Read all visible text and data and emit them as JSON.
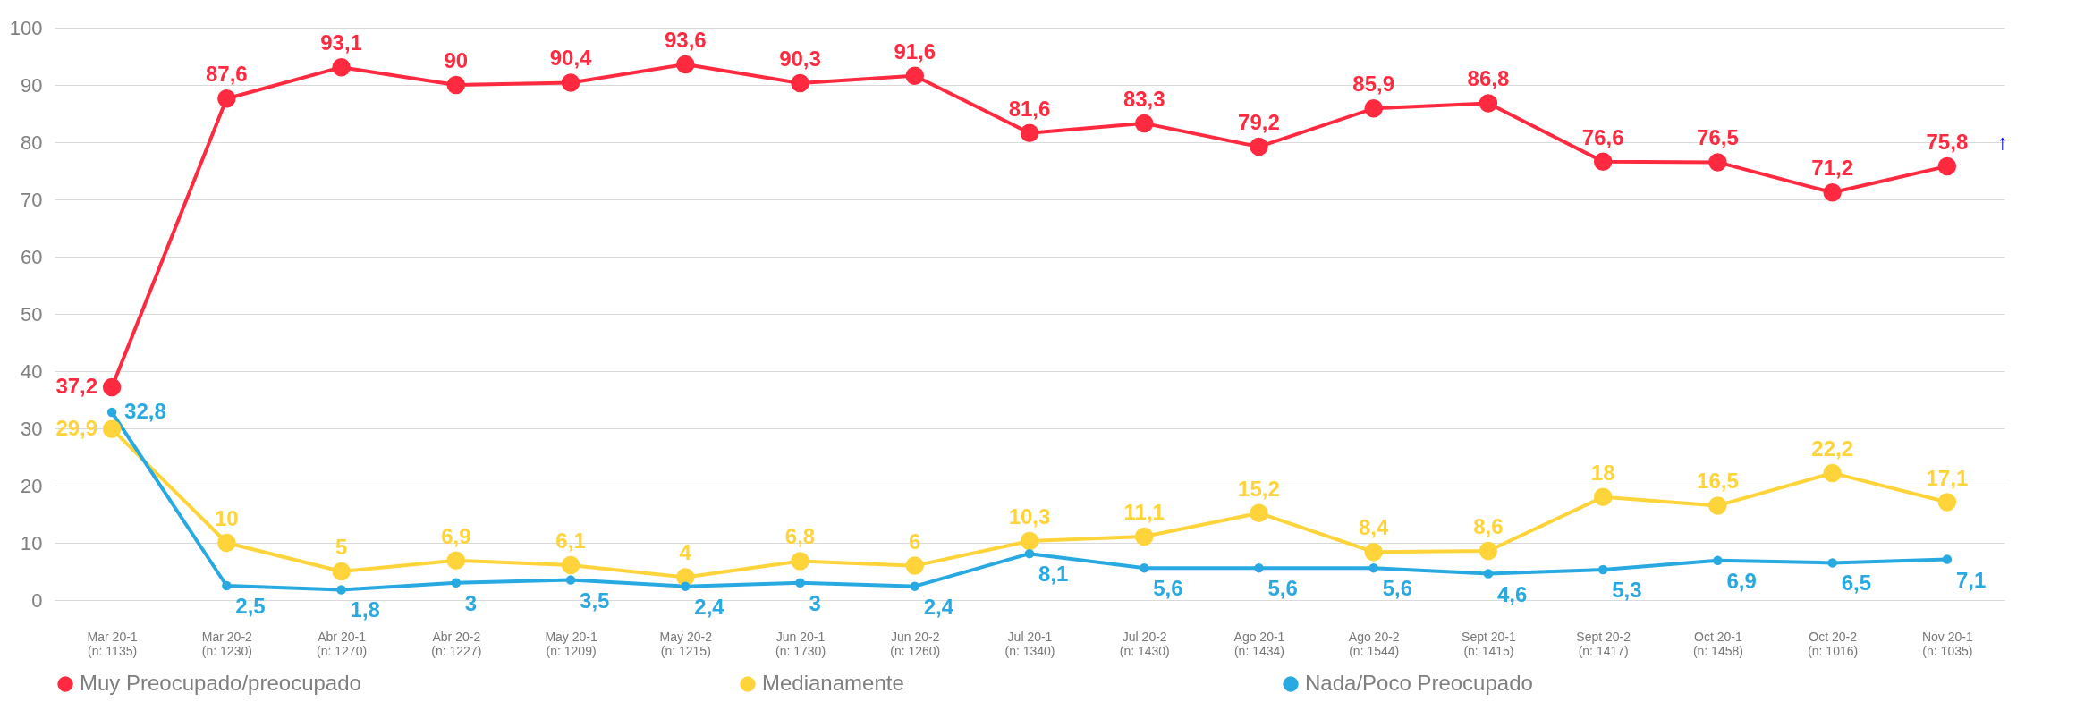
{
  "chart_data": {
    "type": "line",
    "categories": [
      "Mar 20-1\n(n: 1135)",
      "Mar 20-2\n(n: 1230)",
      "Abr 20-1\n(n: 1270)",
      "Abr 20-2\n(n: 1227)",
      "May 20-1\n(n: 1209)",
      "May 20-2\n(n: 1215)",
      "Jun 20-1\n(n: 1730)",
      "Jun 20-2\n(n: 1260)",
      "Jul 20-1\n(n: 1340)",
      "Jul 20-2\n(n: 1430)",
      "Ago 20-1\n(n: 1434)",
      "Ago 20-2\n(n: 1544)",
      "Sept 20-1\n(n: 1415)",
      "Sept 20-2\n(n: 1417)",
      "Oct 20-1\n(n: 1458)",
      "Oct 20-2\n(n: 1016)",
      "Nov 20-1\n(n: 1035)"
    ],
    "series": [
      {
        "name": "Muy Preocupado/preocupado",
        "color": "#ff2a3f",
        "values": [
          37.2,
          87.6,
          93.1,
          90,
          90.4,
          93.6,
          90.3,
          91.6,
          81.6,
          83.3,
          79.2,
          85.9,
          86.8,
          76.6,
          76.5,
          71.2,
          75.8
        ],
        "value_labels": [
          "37,2",
          "87,6",
          "93,1",
          "90",
          "90,4",
          "93,6",
          "90,3",
          "91,6",
          "81,6",
          "83,3",
          "79,2",
          "85,9",
          "86,8",
          "76,6",
          "76,5",
          "71,2",
          "75,8"
        ]
      },
      {
        "name": "Medianamente",
        "color": "#ffd43b",
        "values": [
          29.9,
          10,
          5,
          6.9,
          6.1,
          4,
          6.8,
          6,
          10.3,
          11.1,
          15.2,
          8.4,
          8.6,
          18,
          16.5,
          22.2,
          17.1
        ],
        "value_labels": [
          "29,9",
          "10",
          "5",
          "6,9",
          "6,1",
          "4",
          "6,8",
          "6",
          "10,3",
          "11,1",
          "15,2",
          "8,4",
          "8,6",
          "18",
          "16,5",
          "22,2",
          "17,1"
        ]
      },
      {
        "name": "Nada/Poco Preocupado",
        "color": "#29a9e1",
        "values": [
          32.8,
          2.5,
          1.8,
          3,
          3.5,
          2.4,
          3,
          2.4,
          8.1,
          5.6,
          5.6,
          5.6,
          4.6,
          5.3,
          6.9,
          6.5,
          7.1
        ],
        "value_labels": [
          "32,8",
          "2,5",
          "1,8",
          "3",
          "3,5",
          "2,4",
          "3",
          "2,4",
          "8,1",
          "5,6",
          "5,6",
          "5,6",
          "4,6",
          "5,3",
          "6,9",
          "6,5",
          "7,1"
        ]
      }
    ],
    "ylim": [
      0,
      100
    ],
    "yticks": [
      0,
      10,
      20,
      30,
      40,
      50,
      60,
      70,
      80,
      90,
      100
    ],
    "grid": "y",
    "legend": "bottom",
    "marker": "circle",
    "line_style": "solid",
    "annotations": [
      {
        "text": "↑",
        "x": "Nov 20-1\n(n: 1035)",
        "y": 75.8
      }
    ]
  }
}
